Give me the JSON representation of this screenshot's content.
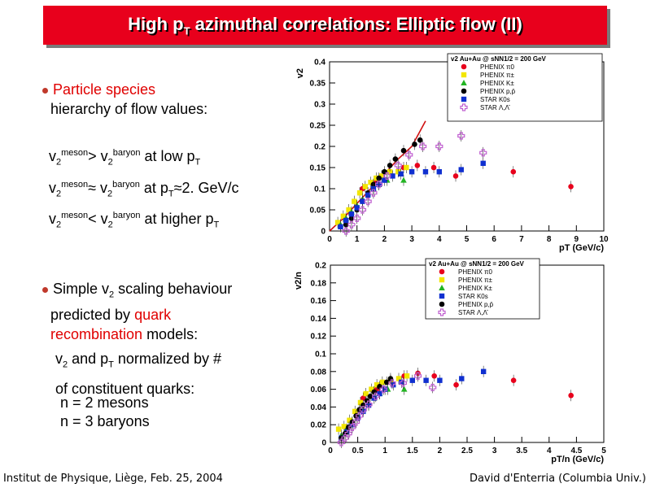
{
  "title": {
    "main": "High p",
    "sub": "T",
    "rest": " azimuthal correlations: Elliptic flow (II)"
  },
  "left": {
    "b1_line1": "Particle species",
    "b1_line2": "hierarchy of flow values:",
    "rows": [
      {
        "v": "v",
        "s": "2",
        "sup": "meson",
        "op": "> ",
        "v2": "v",
        "s2": "2",
        "sup2": "baryon",
        "tail": " at low p",
        "tailsub": "T",
        "tailend": ""
      },
      {
        "v": "v",
        "s": "2",
        "sup": "meson",
        "op": "≈ ",
        "v2": "v",
        "s2": "2",
        "sup2": "baryon",
        "tail": " at p",
        "tailsub": "T",
        "tailend": "≈2. GeV/c"
      },
      {
        "v": "v",
        "s": "2",
        "sup": "meson",
        "op": "< ",
        "v2": "v",
        "s2": "2",
        "sup2": "baryon",
        "tail": " at higher p",
        "tailsub": "T",
        "tailend": ""
      }
    ],
    "b2_a": "Simple v",
    "b2_sub": "2",
    "b2_b": " scaling behaviour",
    "b2_line2": "predicted by ",
    "b2_quark": "quark",
    "b2_recomb": "recombination",
    "b2_models": " models:",
    "n1_a": "v",
    "n1_sub": "2",
    "n1_b": " and p",
    "n1_sub2": "T",
    "n1_c": " normalized by #",
    "n2": "of constituent quarks:",
    "n3": "n = 2 mesons",
    "n4": "n = 3 baryons"
  },
  "footer": {
    "left": "Institut de Physique, Liège, Feb. 25, 2004",
    "right": "David d'Enterria (Columbia Univ.)"
  },
  "colors": {
    "red": "#e8001c",
    "yellow": "#f2e600",
    "green": "#22b422",
    "black": "#000000",
    "blue": "#1030d0",
    "magenta": "#c060d0",
    "curve": "#d01010"
  },
  "chart_data": [
    {
      "type": "scatter",
      "title": "v2 Au+Au @ sNN1/2 = 200 GeV",
      "xlabel": "pT (GeV/c)",
      "ylabel": "v2",
      "xlim": [
        0,
        10
      ],
      "ylim": [
        0,
        0.4
      ],
      "xticks": [
        "0",
        "1",
        "2",
        "3",
        "4",
        "5",
        "6",
        "7",
        "8",
        "9",
        "10"
      ],
      "yticks": [
        "0",
        "0.05",
        "0.1",
        "0.15",
        "0.2",
        "0.25",
        "0.3",
        "0.35",
        "0.4"
      ],
      "legend": [
        "PHENIX π0",
        "PHENIX π±",
        "PHENIX K±",
        "PHENIX p,p̄",
        "STAR K0s",
        "STAR Λ,Λ̄"
      ],
      "series": [
        {
          "name": "PHENIX π0",
          "color": "red",
          "marker": "circle",
          "points": [
            [
              1.2,
              0.1
            ],
            [
              1.7,
              0.12
            ],
            [
              2.2,
              0.14
            ],
            [
              2.7,
              0.15
            ],
            [
              3.2,
              0.155
            ],
            [
              3.8,
              0.15
            ],
            [
              4.6,
              0.13
            ],
            [
              6.7,
              0.14
            ],
            [
              8.8,
              0.105
            ]
          ]
        },
        {
          "name": "PHENIX π±",
          "color": "yellow",
          "marker": "square",
          "points": [
            [
              0.3,
              0.02
            ],
            [
              0.5,
              0.035
            ],
            [
              0.7,
              0.05
            ],
            [
              0.9,
              0.07
            ],
            [
              1.1,
              0.09
            ],
            [
              1.3,
              0.105
            ],
            [
              1.5,
              0.115
            ],
            [
              1.7,
              0.125
            ],
            [
              1.9,
              0.13
            ],
            [
              2.2,
              0.14
            ],
            [
              2.5,
              0.14
            ],
            [
              2.8,
              0.15
            ]
          ]
        },
        {
          "name": "PHENIX K±",
          "color": "green",
          "marker": "triangle",
          "points": [
            [
              0.4,
              0.015
            ],
            [
              0.6,
              0.03
            ],
            [
              0.8,
              0.045
            ],
            [
              1.0,
              0.06
            ],
            [
              1.2,
              0.075
            ],
            [
              1.4,
              0.09
            ],
            [
              1.6,
              0.1
            ],
            [
              1.8,
              0.11
            ],
            [
              2.1,
              0.12
            ],
            [
              2.7,
              0.12
            ]
          ]
        },
        {
          "name": "PHENIX p,p̄",
          "color": "black",
          "marker": "circle",
          "points": [
            [
              0.6,
              0.015
            ],
            [
              0.8,
              0.03
            ],
            [
              1.0,
              0.05
            ],
            [
              1.2,
              0.07
            ],
            [
              1.4,
              0.09
            ],
            [
              1.6,
              0.11
            ],
            [
              1.8,
              0.125
            ],
            [
              2.0,
              0.14
            ],
            [
              2.2,
              0.155
            ],
            [
              2.4,
              0.17
            ],
            [
              2.7,
              0.19
            ],
            [
              3.1,
              0.205
            ],
            [
              3.3,
              0.215
            ]
          ]
        },
        {
          "name": "STAR K0s",
          "color": "blue",
          "marker": "square",
          "points": [
            [
              0.4,
              0.01
            ],
            [
              0.6,
              0.025
            ],
            [
              0.8,
              0.04
            ],
            [
              1.0,
              0.055
            ],
            [
              1.2,
              0.07
            ],
            [
              1.4,
              0.085
            ],
            [
              1.6,
              0.1
            ],
            [
              1.8,
              0.11
            ],
            [
              2.0,
              0.12
            ],
            [
              2.3,
              0.13
            ],
            [
              2.6,
              0.135
            ],
            [
              3.0,
              0.14
            ],
            [
              3.5,
              0.14
            ],
            [
              4.0,
              0.14
            ],
            [
              4.8,
              0.145
            ],
            [
              5.6,
              0.16
            ]
          ]
        },
        {
          "name": "STAR Λ,Λ̄",
          "color": "magenta",
          "marker": "opencross",
          "points": [
            [
              0.6,
              0.0
            ],
            [
              0.8,
              0.015
            ],
            [
              1.0,
              0.03
            ],
            [
              1.2,
              0.05
            ],
            [
              1.4,
              0.07
            ],
            [
              1.6,
              0.09
            ],
            [
              1.8,
              0.11
            ],
            [
              2.1,
              0.13
            ],
            [
              2.5,
              0.155
            ],
            [
              2.9,
              0.18
            ],
            [
              3.4,
              0.2
            ],
            [
              4.0,
              0.2
            ],
            [
              4.8,
              0.225
            ],
            [
              5.6,
              0.185
            ]
          ]
        }
      ],
      "curve": [
        [
          0.0,
          0.0
        ],
        [
          0.5,
          0.03
        ],
        [
          1.0,
          0.065
        ],
        [
          1.5,
          0.1
        ],
        [
          2.0,
          0.135
        ],
        [
          2.5,
          0.17
        ],
        [
          3.0,
          0.2
        ],
        [
          3.5,
          0.26
        ]
      ]
    },
    {
      "type": "scatter",
      "title": "v2 Au+Au @ sNN1/2 = 200 GeV",
      "xlabel": "pT/n (GeV/c)",
      "ylabel": "v2/n",
      "xlim": [
        0,
        5
      ],
      "ylim": [
        0,
        0.2
      ],
      "xticks": [
        "0",
        "0.5",
        "1",
        "1.5",
        "2",
        "2.5",
        "3",
        "3.5",
        "4",
        "4.5",
        "5"
      ],
      "yticks": [
        "0",
        "0.02",
        "0.04",
        "0.06",
        "0.08",
        "0.1",
        "0.12",
        "0.14",
        "0.16",
        "0.18",
        "0.2"
      ],
      "legend": [
        "PHENIX π0",
        "PHENIX π±",
        "PHENIX K±",
        "STAR K0s",
        "PHENIX p,p̄",
        "STAR Λ,Λ̄"
      ],
      "series": [
        {
          "name": "PHENIX π0",
          "color": "red",
          "marker": "circle",
          "points": [
            [
              0.6,
              0.05
            ],
            [
              0.85,
              0.06
            ],
            [
              1.1,
              0.07
            ],
            [
              1.35,
              0.075
            ],
            [
              1.6,
              0.078
            ],
            [
              1.9,
              0.075
            ],
            [
              2.3,
              0.065
            ],
            [
              3.35,
              0.07
            ],
            [
              4.4,
              0.053
            ]
          ]
        },
        {
          "name": "PHENIX π±",
          "color": "yellow",
          "marker": "square",
          "points": [
            [
              0.15,
              0.015
            ],
            [
              0.25,
              0.018
            ],
            [
              0.35,
              0.025
            ],
            [
              0.45,
              0.035
            ],
            [
              0.55,
              0.045
            ],
            [
              0.65,
              0.055
            ],
            [
              0.75,
              0.06
            ],
            [
              0.85,
              0.065
            ],
            [
              0.95,
              0.068
            ],
            [
              1.1,
              0.07
            ],
            [
              1.25,
              0.072
            ],
            [
              1.4,
              0.075
            ]
          ]
        },
        {
          "name": "PHENIX K±",
          "color": "green",
          "marker": "triangle",
          "points": [
            [
              0.2,
              0.008
            ],
            [
              0.3,
              0.015
            ],
            [
              0.4,
              0.022
            ],
            [
              0.5,
              0.03
            ],
            [
              0.6,
              0.038
            ],
            [
              0.7,
              0.045
            ],
            [
              0.8,
              0.05
            ],
            [
              0.9,
              0.055
            ],
            [
              1.05,
              0.06
            ],
            [
              1.35,
              0.06
            ]
          ]
        },
        {
          "name": "STAR K0s",
          "color": "blue",
          "marker": "square",
          "points": [
            [
              0.2,
              0.005
            ],
            [
              0.3,
              0.012
            ],
            [
              0.4,
              0.02
            ],
            [
              0.5,
              0.028
            ],
            [
              0.6,
              0.035
            ],
            [
              0.7,
              0.042
            ],
            [
              0.8,
              0.05
            ],
            [
              0.9,
              0.055
            ],
            [
              1.0,
              0.06
            ],
            [
              1.15,
              0.065
            ],
            [
              1.3,
              0.068
            ],
            [
              1.5,
              0.07
            ],
            [
              1.75,
              0.07
            ],
            [
              2.0,
              0.07
            ],
            [
              2.4,
              0.072
            ],
            [
              2.8,
              0.08
            ]
          ]
        },
        {
          "name": "PHENIX p,p̄",
          "color": "black",
          "marker": "circle",
          "points": [
            [
              0.2,
              0.005
            ],
            [
              0.27,
              0.01
            ],
            [
              0.33,
              0.017
            ],
            [
              0.4,
              0.023
            ],
            [
              0.47,
              0.03
            ],
            [
              0.53,
              0.037
            ],
            [
              0.6,
              0.042
            ],
            [
              0.67,
              0.047
            ],
            [
              0.73,
              0.052
            ],
            [
              0.8,
              0.057
            ],
            [
              0.9,
              0.063
            ],
            [
              1.03,
              0.068
            ],
            [
              1.1,
              0.072
            ]
          ]
        },
        {
          "name": "STAR Λ,Λ̄",
          "color": "magenta",
          "marker": "opencross",
          "points": [
            [
              0.2,
              0.0
            ],
            [
              0.27,
              0.005
            ],
            [
              0.33,
              0.01
            ],
            [
              0.4,
              0.017
            ],
            [
              0.47,
              0.023
            ],
            [
              0.53,
              0.03
            ],
            [
              0.6,
              0.037
            ],
            [
              0.7,
              0.043
            ],
            [
              0.83,
              0.052
            ],
            [
              0.97,
              0.06
            ],
            [
              1.13,
              0.067
            ],
            [
              1.33,
              0.067
            ],
            [
              1.6,
              0.075
            ],
            [
              1.87,
              0.062
            ]
          ]
        }
      ]
    }
  ]
}
